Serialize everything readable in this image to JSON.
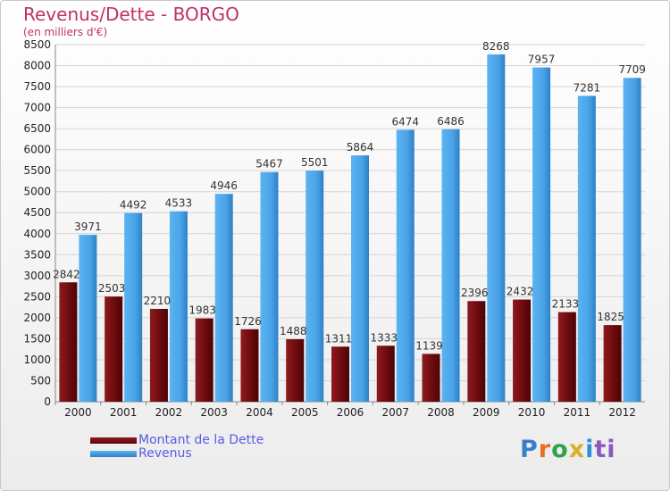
{
  "header": {
    "title": "Revenus/Dette - BORGO",
    "subtitle": "(en milliers d'€)"
  },
  "logo": {
    "text": "Proxiti"
  },
  "colors": {
    "dette": "#7a0d10",
    "revenus": "#4aa3e8",
    "title": "#c0306a",
    "legend_text": "#5a5ae6"
  },
  "chart_data": {
    "type": "bar",
    "title": "Revenus/Dette - BORGO",
    "subtitle": "(en milliers d'€)",
    "xlabel": "",
    "ylabel": "",
    "categories": [
      "2000",
      "2001",
      "2002",
      "2003",
      "2004",
      "2005",
      "2006",
      "2007",
      "2008",
      "2009",
      "2010",
      "2011",
      "2012"
    ],
    "ylim": [
      0,
      8500
    ],
    "yticks": [
      0,
      500,
      1000,
      1500,
      2000,
      2500,
      3000,
      3500,
      4000,
      4500,
      5000,
      5500,
      6000,
      6500,
      7000,
      7500,
      8000,
      8500
    ],
    "grid": true,
    "legend_position": "bottom-left",
    "series": [
      {
        "name": "Montant de la Dette",
        "color": "#7a0d10",
        "values": [
          2842,
          2503,
          2210,
          1983,
          1726,
          1488,
          1311,
          1333,
          1139,
          2396,
          2432,
          2133,
          1825
        ]
      },
      {
        "name": "Revenus",
        "color": "#4aa3e8",
        "values": [
          3971,
          4492,
          4533,
          4946,
          5467,
          5501,
          5864,
          6474,
          6486,
          8268,
          7957,
          7281,
          7709
        ]
      }
    ]
  }
}
